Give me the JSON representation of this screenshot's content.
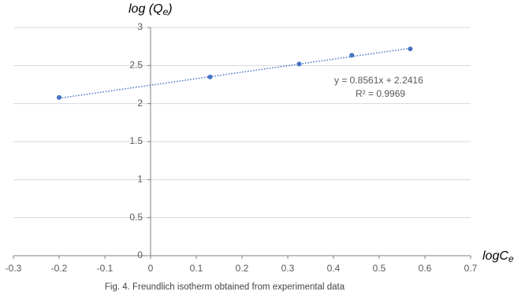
{
  "chart_data": {
    "type": "scatter",
    "y_label": {
      "main": "log (Q",
      "sub": "e",
      "tail": ")"
    },
    "x_label": {
      "main": "logC",
      "sub": "e"
    },
    "caption": "Fig. 4. Freundlich isotherm obtained from experimental data",
    "series": [
      {
        "color": "#4472c4",
        "x": [
          -0.2,
          0.13,
          0.325,
          0.44,
          0.568
        ],
        "values": [
          2.08,
          2.35,
          2.52,
          2.635,
          2.72
        ]
      }
    ],
    "trendline": {
      "slope": 0.8561,
      "intercept": 2.2416,
      "color": "#4472c4",
      "equation_label": "y = 0.8561x + 2.2416",
      "r2_label": "R² = 0.9969"
    },
    "xlim": [
      -0.3,
      0.7
    ],
    "xticks": [
      -0.3,
      -0.2,
      -0.1,
      0,
      0.1,
      0.2,
      0.3,
      0.4,
      0.5,
      0.6,
      0.7
    ],
    "ylim": [
      0,
      3
    ],
    "yticks": [
      0,
      0.5,
      1,
      1.5,
      2,
      2.5,
      3
    ],
    "grid": true
  }
}
